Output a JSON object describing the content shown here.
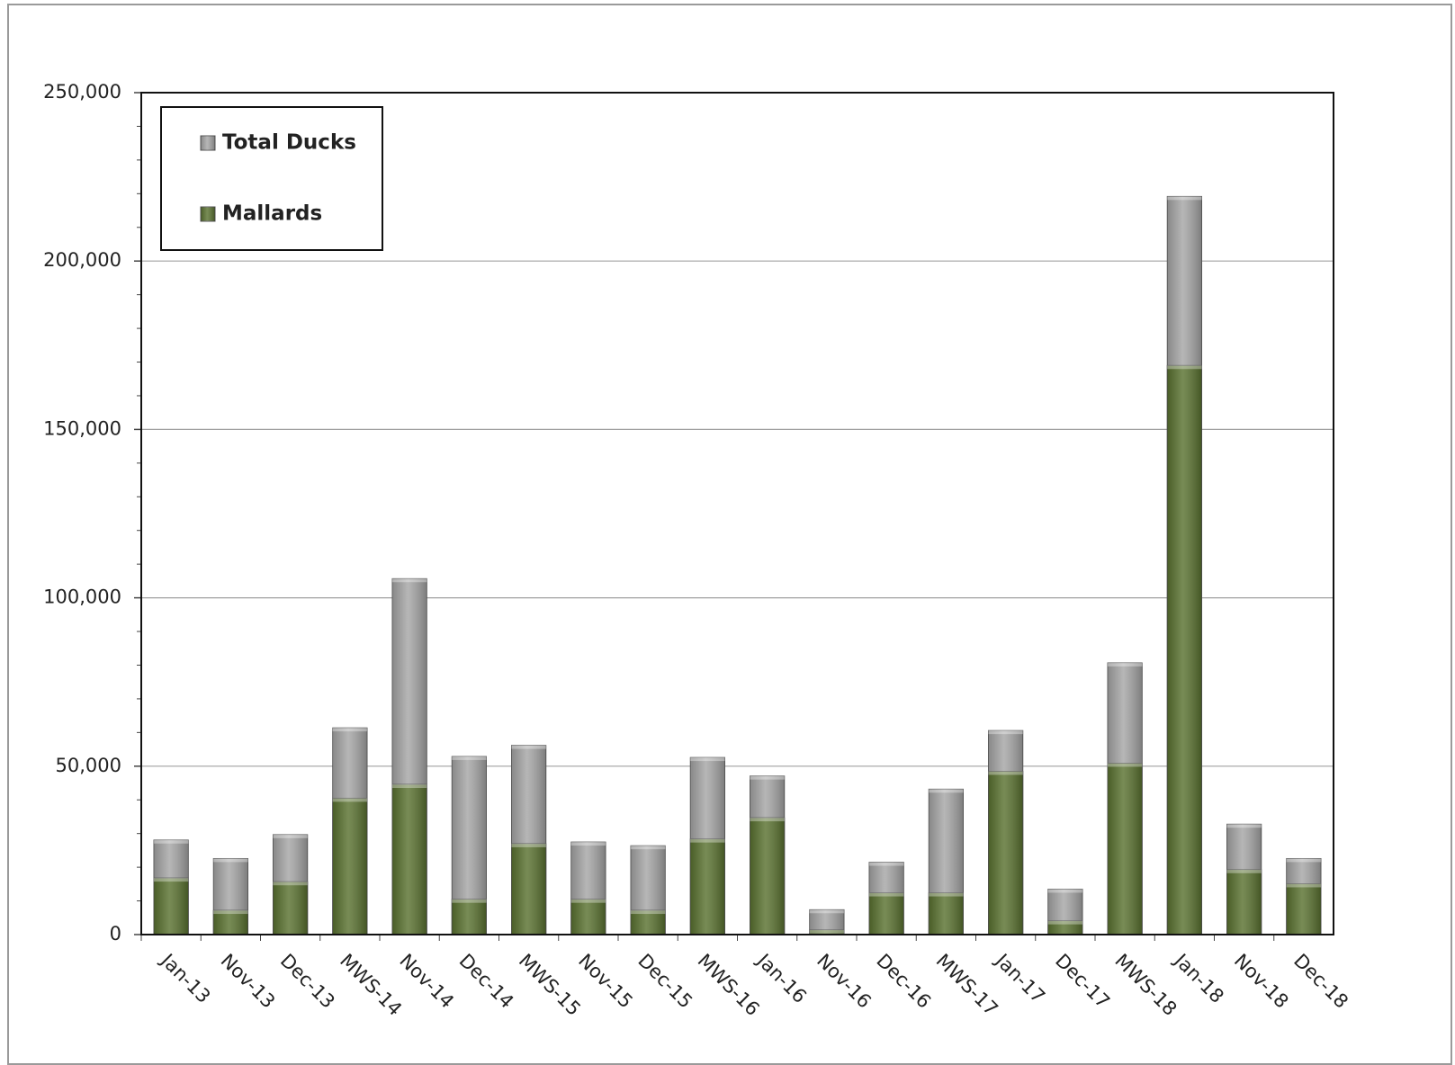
{
  "chart_data": {
    "type": "bar",
    "categories": [
      "Jan-13",
      "Nov-13",
      "Dec-13",
      "MWS-14",
      "Nov-14",
      "Dec-14",
      "MWS-15",
      "Nov-15",
      "Dec-15",
      "MWS-16",
      "Jan-16",
      "Nov-16",
      "Dec-16",
      "MWS-17",
      "Jan-17",
      "Dec-17",
      "MWS-18",
      "Jan-18",
      "Nov-18",
      "Dec-18"
    ],
    "series": [
      {
        "name": "Total Ducks",
        "color": "#a6a6a6",
        "values": [
          28100,
          22600,
          29700,
          61400,
          105700,
          52900,
          56200,
          27500,
          26400,
          52600,
          47100,
          7400,
          21500,
          43200,
          60600,
          13500,
          80700,
          219200,
          32800,
          22600
        ]
      },
      {
        "name": "Mallards",
        "color": "#5a7230",
        "values": [
          16800,
          7200,
          15700,
          40500,
          44600,
          10500,
          27000,
          10500,
          7200,
          28400,
          34700,
          1400,
          12400,
          12400,
          48500,
          4100,
          50900,
          169000,
          19300,
          15100
        ]
      }
    ],
    "ylim": [
      0,
      250000
    ],
    "yticks": [
      0,
      {
        "value": 50000,
        "label": "50,000"
      },
      {
        "value": 100000,
        "label": "100,000"
      },
      {
        "value": 150000,
        "label": "150,000"
      },
      {
        "value": 200000,
        "label": "200,000"
      },
      {
        "value": 250000,
        "label": "250,000"
      }
    ],
    "grid": true,
    "legend": "upper left"
  }
}
